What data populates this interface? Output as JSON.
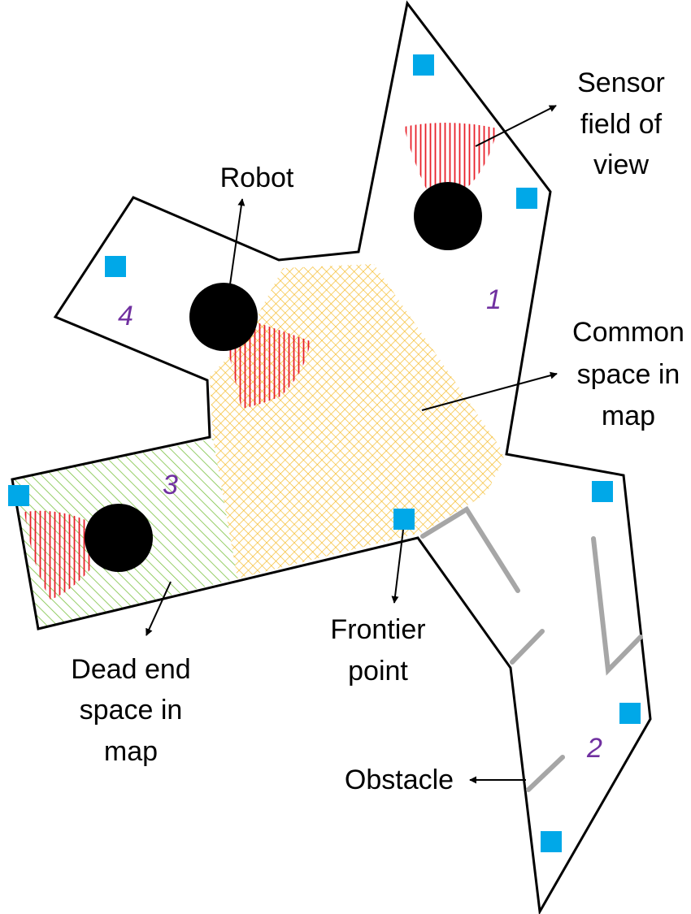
{
  "labels": {
    "sensor": [
      "Sensor",
      "field of",
      "view"
    ],
    "robot": "Robot",
    "common": [
      "Common",
      "space in",
      "map"
    ],
    "frontier": [
      "Frontier",
      "point"
    ],
    "dead_end": [
      "Dead end",
      "space in",
      "map"
    ],
    "obstacle": "Obstacle"
  },
  "region_numbers": [
    "1",
    "2",
    "3",
    "4"
  ],
  "colors": {
    "outline": "#000000",
    "robot": "#000000",
    "frontier_point": "#00a8e8",
    "sensor_hatch": "#e8202a",
    "common_hatch": "#f5b820",
    "dead_end_hatch": "#7cc242",
    "obstacle": "#a6a6a6",
    "region_number": "#7030a0"
  }
}
